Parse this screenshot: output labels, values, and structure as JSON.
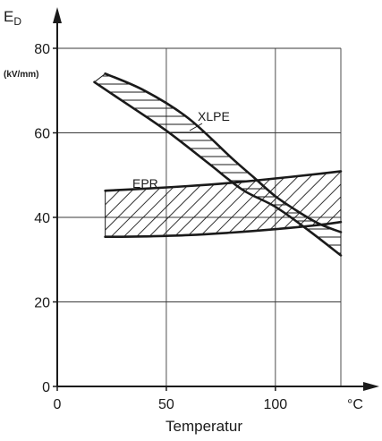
{
  "chart_data": {
    "type": "area",
    "title": "",
    "xlabel": "Temperatur",
    "ylabel": {
      "symbol": "E",
      "subscript": "D"
    },
    "yunit": "(kV/mm)",
    "xunit": "°C",
    "xlim": [
      0,
      130
    ],
    "ylim": [
      0,
      80
    ],
    "xticks": [
      0,
      50,
      100
    ],
    "yticks": [
      0,
      20,
      40,
      60,
      80
    ],
    "grid": true,
    "legend": "none",
    "series": [
      {
        "name": "XLPE",
        "upper": {
          "x": [
            22,
            40,
            60,
            80,
            90,
            100,
            110,
            120,
            130
          ],
          "y": [
            74,
            70,
            63.5,
            54,
            49.5,
            45,
            41.5,
            38.5,
            36.5
          ]
        },
        "lower": {
          "x": [
            17,
            30,
            50,
            70,
            85,
            100,
            115,
            130
          ],
          "y": [
            72,
            67.5,
            60.5,
            52.5,
            46.5,
            42.5,
            37,
            31
          ]
        },
        "fill": "horizontal-hatch"
      },
      {
        "name": "EPR",
        "upper": {
          "x": [
            22,
            40,
            60,
            80,
            100,
            120,
            130
          ],
          "y": [
            46.3,
            46.8,
            47.4,
            48.2,
            49.2,
            50.3,
            50.9
          ]
        },
        "lower": {
          "x": [
            22,
            40,
            60,
            80,
            100,
            120,
            130
          ],
          "y": [
            35.4,
            35.5,
            35.8,
            36.4,
            37.2,
            38.2,
            38.9
          ]
        },
        "fill": "diagonal-hatch"
      }
    ]
  },
  "colors": {
    "ink": "#1a1a1a",
    "grid": "#3a3a3a",
    "background": "#ffffff"
  }
}
